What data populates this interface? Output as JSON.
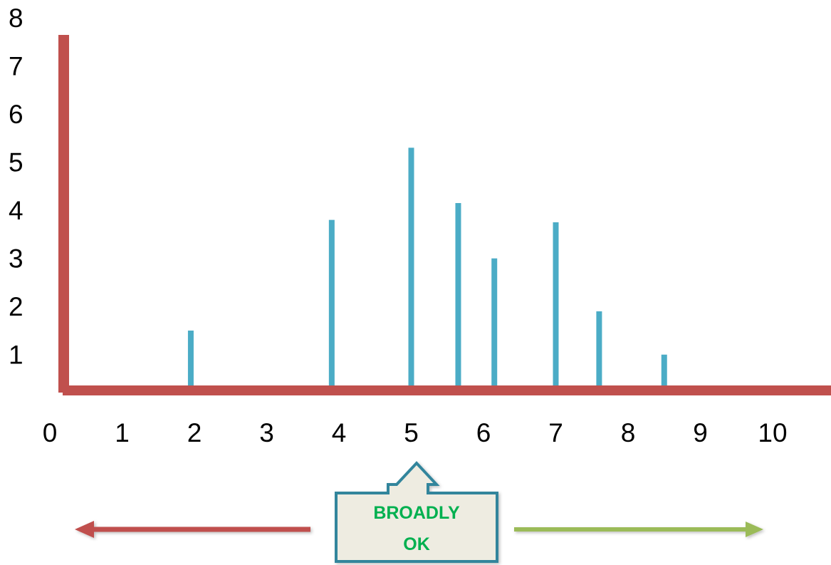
{
  "chart_data": {
    "type": "bar",
    "title": "",
    "xlabel": "",
    "ylabel": "",
    "x_ticks": [
      "0",
      "1",
      "2",
      "3",
      "4",
      "5",
      "6",
      "7",
      "8",
      "9",
      "10"
    ],
    "y_ticks": [
      "1",
      "2",
      "3",
      "4",
      "5",
      "6",
      "7",
      "8"
    ],
    "xlim": [
      0,
      10.8
    ],
    "ylim": [
      0.3,
      8
    ],
    "grid": false,
    "x": [
      1.95,
      3.9,
      5.0,
      5.65,
      6.15,
      7.0,
      7.6,
      8.5
    ],
    "values": [
      1.5,
      3.8,
      5.3,
      4.15,
      3.0,
      3.75,
      1.9,
      1.0
    ],
    "colors": {
      "axis": "#c0504d",
      "bar": "#4bacc6",
      "left_arrow": "#c0504d",
      "right_arrow": "#9bbb59"
    }
  },
  "callout": {
    "line1": "BROADLY",
    "line2": "OK",
    "fill": "#eeece1",
    "border": "#31859c",
    "text_color": "#00b050"
  }
}
